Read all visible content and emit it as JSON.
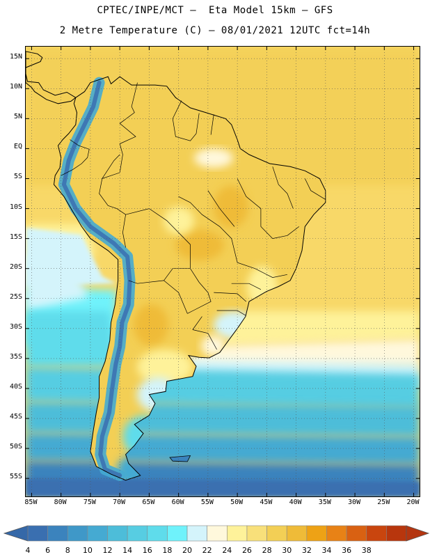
{
  "title": {
    "line1": "CPTEC/INPE/MCT –  Eta Model 15km – GFS",
    "line2": "2 Metre Temperature (C) – 08/01/2021 12UTC fct=14h"
  },
  "map": {
    "lon_range": [
      -86,
      -19
    ],
    "lat_range": [
      -58,
      17
    ],
    "lat_ticks": [
      {
        "value": 15,
        "label": "15N"
      },
      {
        "value": 10,
        "label": "10N"
      },
      {
        "value": 5,
        "label": "5N"
      },
      {
        "value": 0,
        "label": "EQ"
      },
      {
        "value": -5,
        "label": "5S"
      },
      {
        "value": -10,
        "label": "10S"
      },
      {
        "value": -15,
        "label": "15S"
      },
      {
        "value": -20,
        "label": "20S"
      },
      {
        "value": -25,
        "label": "25S"
      },
      {
        "value": -30,
        "label": "30S"
      },
      {
        "value": -35,
        "label": "35S"
      },
      {
        "value": -40,
        "label": "40S"
      },
      {
        "value": -45,
        "label": "45S"
      },
      {
        "value": -50,
        "label": "50S"
      },
      {
        "value": -55,
        "label": "55S"
      }
    ],
    "lon_ticks": [
      {
        "value": -85,
        "label": "85W"
      },
      {
        "value": -80,
        "label": "80W"
      },
      {
        "value": -75,
        "label": "75W"
      },
      {
        "value": -70,
        "label": "70W"
      },
      {
        "value": -65,
        "label": "65W"
      },
      {
        "value": -60,
        "label": "60W"
      },
      {
        "value": -55,
        "label": "55W"
      },
      {
        "value": -50,
        "label": "50W"
      },
      {
        "value": -45,
        "label": "45W"
      },
      {
        "value": -40,
        "label": "40W"
      },
      {
        "value": -35,
        "label": "35W"
      },
      {
        "value": -30,
        "label": "30W"
      },
      {
        "value": -25,
        "label": "25W"
      },
      {
        "value": -20,
        "label": "20W"
      }
    ],
    "grid": true
  },
  "colorbar": {
    "levels": [
      "4",
      "6",
      "8",
      "10",
      "12",
      "14",
      "16",
      "18",
      "20",
      "22",
      "24",
      "26",
      "28",
      "30",
      "32",
      "34",
      "36",
      "38"
    ],
    "colors": [
      "#3a6fb0",
      "#3b83bd",
      "#3f98c8",
      "#45aad2",
      "#4dbdd9",
      "#57cde2",
      "#5fdceb",
      "#6ff2fb",
      "#d4f4fb",
      "#fff8dc",
      "#fef29a",
      "#f8e07a",
      "#f3cf55",
      "#efbb38",
      "#eea215",
      "#e88216",
      "#d96112",
      "#c9450e",
      "#b8360d"
    ],
    "under_color": "#3568a8",
    "over_color": "#b43510"
  }
}
